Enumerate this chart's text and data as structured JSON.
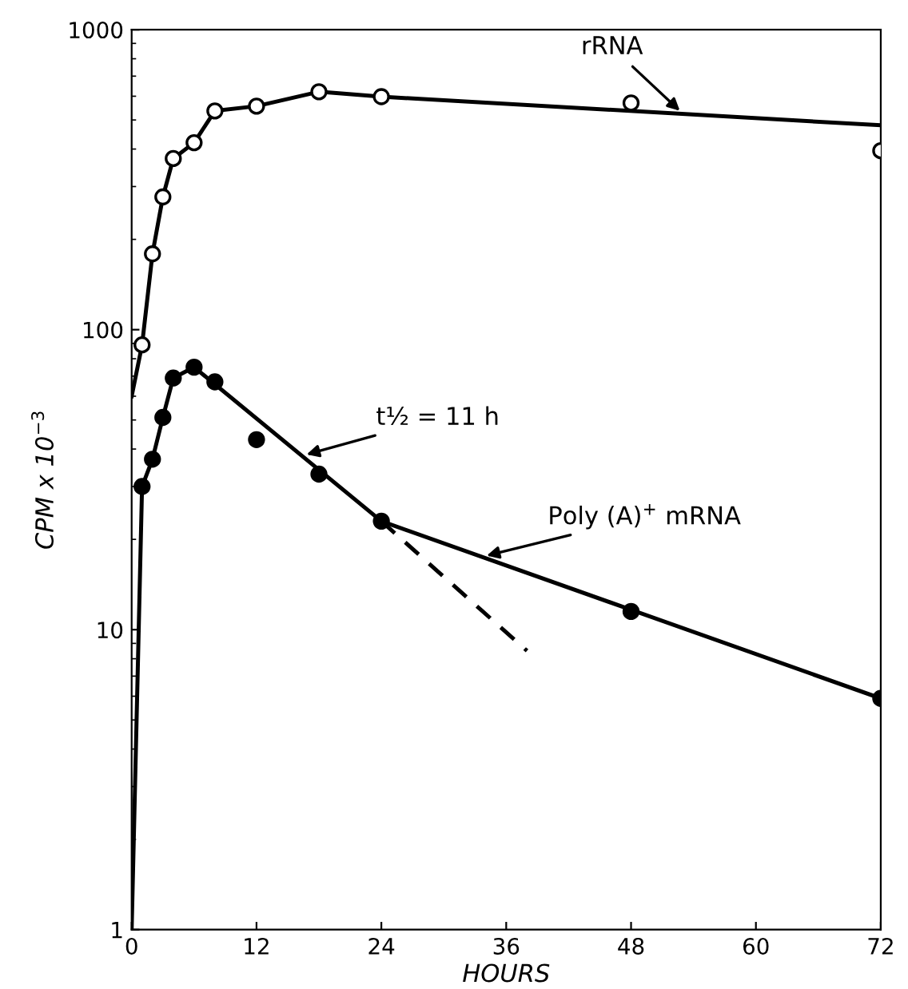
{
  "chart_data": {
    "type": "line",
    "xlabel": "HOURS",
    "ylabel": "CPM x 10$^{−3}$",
    "log": "y",
    "xlim": [
      0,
      72
    ],
    "xticks": [
      0,
      12,
      24,
      36,
      48,
      60,
      72
    ],
    "ylim": [
      1,
      1000
    ],
    "yticks": [
      1,
      10,
      100,
      1000
    ],
    "grid": false,
    "legend": false,
    "series": [
      {
        "type": "scatter",
        "marker": "circle",
        "color": "#000000",
        "x": [
          1,
          2,
          3,
          4,
          6,
          8,
          12,
          18,
          24,
          48,
          72
        ],
        "values": [
          89,
          179,
          277,
          372,
          420,
          536,
          556,
          621,
          598,
          570,
          395
        ]
      },
      {
        "marker": "none",
        "line_style": "solid",
        "color": "#000000",
        "x": [
          0,
          1,
          2,
          3,
          4,
          6,
          8,
          12,
          18,
          24,
          72
        ],
        "values": [
          60,
          89,
          179,
          277,
          372,
          420,
          536,
          556,
          621,
          598,
          480
        ]
      },
      {
        "type": "scatter",
        "marker": "circle",
        "color": "#000000",
        "x": [
          1,
          2,
          3,
          4,
          6,
          8,
          12,
          18,
          24,
          48,
          72
        ],
        "values": [
          30,
          37,
          51,
          69,
          75,
          67,
          43,
          33,
          23,
          11.5,
          5.9
        ]
      },
      {
        "marker": "none",
        "line_style": "solid",
        "color": "#000000",
        "x": [
          0,
          1,
          2,
          3,
          4,
          6,
          24,
          72
        ],
        "values": [
          1,
          30,
          37,
          51,
          69,
          75,
          23,
          5.9
        ]
      },
      {
        "marker": "none",
        "line_style": "dashed",
        "color": "#000000",
        "x": [
          24,
          38
        ],
        "values": [
          23,
          8.5
        ]
      }
    ],
    "annotations": [
      {
        "text": "rRNA",
        "x": 53,
        "y": 524
      },
      {
        "text": "t½ = 11 h",
        "x": 16.4,
        "y": 38
      },
      {
        "text": "Poly (A)$^{+}$ mRNA",
        "x": 33.7,
        "y": 17.5
      }
    ]
  }
}
